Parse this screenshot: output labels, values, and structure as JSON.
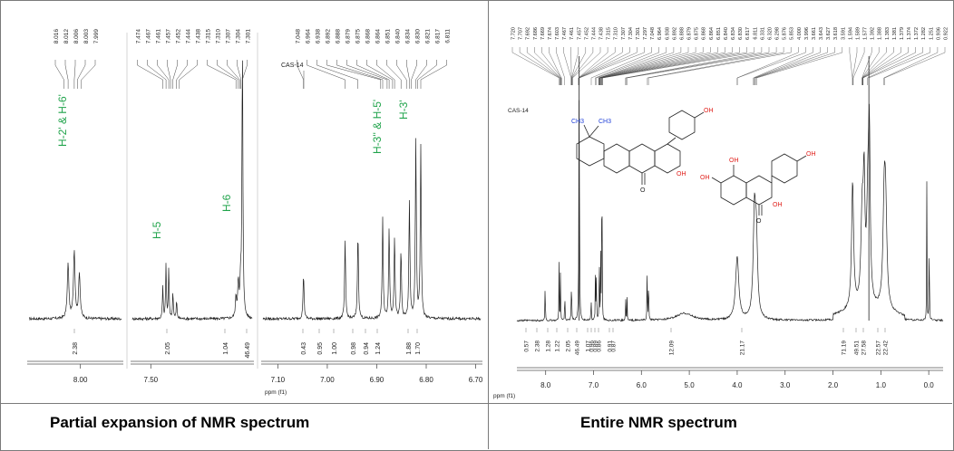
{
  "colors": {
    "label_green": "#1fa34a",
    "oh_red": "#e0201b",
    "methyl_blue": "#1f3fd8",
    "trace": "#222222"
  },
  "captions": {
    "left": "Partial expansion of NMR spectrum",
    "right": "Entire NMR spectrum"
  },
  "chart_data": [
    {
      "type": "line",
      "title": "Partial expansion",
      "xlabel": "ppm (f1)",
      "sample_label": "CAS-14",
      "panels": [
        {
          "xlim": [
            8.05,
            7.96
          ],
          "ticks": [
            "8.00"
          ],
          "peak_labels": [
            "8.016",
            "8.012",
            "8.006",
            "8.003",
            "7.999"
          ],
          "integrals": [
            "2.38"
          ],
          "annotations": [
            "H-2' & H-6'"
          ]
        },
        {
          "xlim": [
            7.54,
            7.28
          ],
          "ticks": [
            "7.50"
          ],
          "peak_labels": [
            "7.474",
            "7.467",
            "7.461",
            "7.457",
            "7.452",
            "7.444",
            "7.438",
            "7.315",
            "7.310",
            "7.307",
            "7.304",
            "7.301"
          ],
          "integrals": [
            "2.05",
            "1.04",
            "46.49"
          ],
          "annotations": [
            "H-5",
            "H-6"
          ]
        },
        {
          "xlim": [
            7.13,
            6.69
          ],
          "ticks": [
            "7.10",
            "7.00",
            "6.90",
            "6.80",
            "6.70"
          ],
          "peak_labels": [
            "7.048",
            "6.964",
            "6.938",
            "6.892",
            "6.888",
            "6.879",
            "6.875",
            "6.868",
            "6.864",
            "6.851",
            "6.840",
            "6.834",
            "6.830",
            "6.821",
            "6.817",
            "6.811"
          ],
          "integrals": [
            "0.43",
            "0.95",
            "1.00",
            "0.98",
            "0.94",
            "1.24",
            "1.88",
            "1.70"
          ],
          "annotations": [
            "H-3'' & H-5'",
            "H-3'"
          ]
        }
      ]
    },
    {
      "type": "line",
      "title": "Entire spectrum",
      "xlabel": "ppm (f1)",
      "sample_label": "CAS-14",
      "xlim": [
        8.6,
        -0.3
      ],
      "ticks": [
        "8.0",
        "7.0",
        "6.0",
        "5.0",
        "4.0",
        "3.0",
        "2.0",
        "1.0",
        "0.0"
      ],
      "peak_labels": [
        "7.720",
        "7.707",
        "7.692",
        "7.686",
        "7.669",
        "7.674",
        "7.603",
        "7.467",
        "7.461",
        "7.457",
        "7.452",
        "7.444",
        "7.438",
        "7.315",
        "7.310",
        "7.307",
        "7.304",
        "7.301",
        "7.297",
        "7.048",
        "6.964",
        "6.938",
        "6.892",
        "6.888",
        "6.879",
        "6.875",
        "6.868",
        "6.864",
        "6.851",
        "6.840",
        "6.834",
        "6.830",
        "6.817",
        "6.811",
        "6.331",
        "6.320",
        "6.298",
        "5.876",
        "5.853",
        "4.000",
        "3.996",
        "3.661",
        "3.643",
        "3.627",
        "3.618",
        "3.591",
        "1.594",
        "1.589",
        "1.577",
        "1.392",
        "1.388",
        "1.383",
        "1.381",
        "1.379",
        "1.374",
        "1.372",
        "1.282",
        "1.251",
        "0.936",
        "0.922"
      ],
      "integrals": [
        "0.57",
        "2.38",
        "1.28",
        "1.22",
        "2.05",
        "46.49",
        "1.07",
        "0.96",
        "0.89",
        "0.86",
        "0.91",
        "0.87",
        "12.09",
        "21.17",
        "71.19",
        "49.51",
        "27.58",
        "22.57",
        "22.42"
      ],
      "structure_labels": {
        "ch3": "CH3",
        "oh": "OH",
        "ketone": "O"
      }
    }
  ]
}
